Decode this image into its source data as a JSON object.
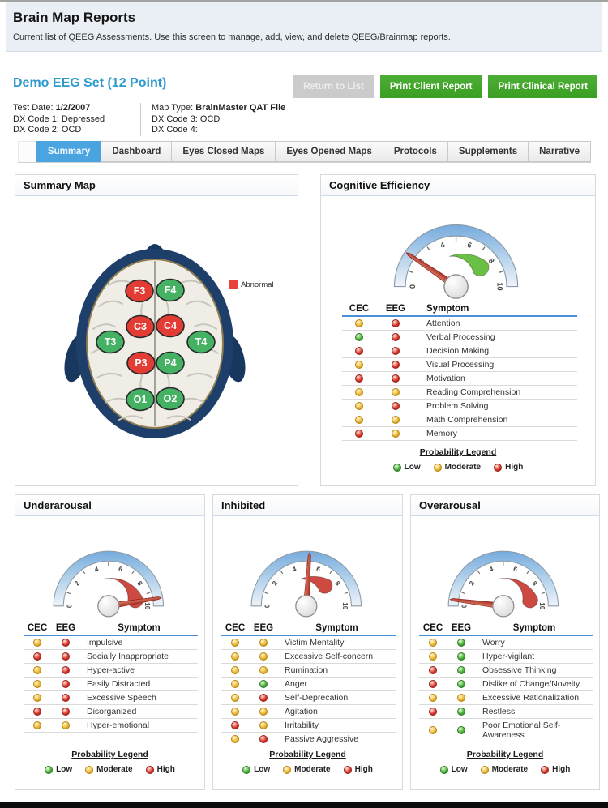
{
  "header": {
    "title": "Brain Map Reports",
    "subtitle": "Current list of QEEG Assessments. Use this screen to manage, add, view, and delete QEEG/Brainmap reports."
  },
  "report": {
    "name": "Demo EEG Set (12 Point)",
    "actions": [
      {
        "label": "Return to List",
        "style": "disabled"
      },
      {
        "label": "Print Client Report",
        "style": "green"
      },
      {
        "label": "Print Clinical Report",
        "style": "green"
      }
    ],
    "meta_left": [
      {
        "label": "Test Date:",
        "value": "1/2/2007",
        "bold_value": true
      },
      {
        "label": "DX Code 1:",
        "value": "Depressed"
      },
      {
        "label": "DX Code 2:",
        "value": "OCD"
      }
    ],
    "meta_right": [
      {
        "label": "Map Type:",
        "value": "BrainMaster QAT File",
        "bold_value": true
      },
      {
        "label": "DX Code 3:",
        "value": "OCD"
      },
      {
        "label": "DX Code 4:",
        "value": ""
      }
    ]
  },
  "tabs": [
    {
      "label": "Summary",
      "active": true
    },
    {
      "label": "Dashboard"
    },
    {
      "label": "Eyes Closed Maps"
    },
    {
      "label": "Eyes Opened Maps"
    },
    {
      "label": "Protocols"
    },
    {
      "label": "Supplements"
    },
    {
      "label": "Narrative"
    }
  ],
  "summary_map": {
    "title": "Summary Map",
    "legend_label": "Abnormal",
    "colors": {
      "abnormal": "#e23c35",
      "normal": "#44b163"
    },
    "electrodes": [
      {
        "id": "F3",
        "status": "abnormal"
      },
      {
        "id": "F4",
        "status": "normal"
      },
      {
        "id": "C3",
        "status": "abnormal"
      },
      {
        "id": "C4",
        "status": "abnormal"
      },
      {
        "id": "T3",
        "status": "normal"
      },
      {
        "id": "T4",
        "status": "normal"
      },
      {
        "id": "P3",
        "status": "abnormal"
      },
      {
        "id": "P4",
        "status": "normal"
      },
      {
        "id": "O1",
        "status": "normal"
      },
      {
        "id": "O2",
        "status": "normal"
      }
    ]
  },
  "table_columns": [
    "CEC",
    "EEG",
    "Symptom"
  ],
  "gauges_scale": {
    "min": 0,
    "max": 10,
    "ticks": [
      0,
      2,
      4,
      6,
      8,
      10
    ]
  },
  "probability_legend": {
    "title": "Probability Legend",
    "items": [
      {
        "label": "Low",
        "level": "low"
      },
      {
        "label": "Moderate",
        "level": "moderate"
      },
      {
        "label": "High",
        "level": "high"
      }
    ]
  },
  "levels": {
    "low": "#44ad3f",
    "moderate": "#eebc3e",
    "high": "#d93a33"
  },
  "panels": [
    {
      "title": "Cognitive Efficiency",
      "gauge": {
        "value": 1.9,
        "band_from": 4.3,
        "band_to": 7.9,
        "band_color": "#6abf45"
      },
      "rows": [
        {
          "symptom": "Attention",
          "cec": "moderate",
          "eeg": "high"
        },
        {
          "symptom": "Verbal Processing",
          "cec": "low",
          "eeg": "high"
        },
        {
          "symptom": "Decision Making",
          "cec": "high",
          "eeg": "high"
        },
        {
          "symptom": "Visual Processing",
          "cec": "moderate",
          "eeg": "high"
        },
        {
          "symptom": "Motivation",
          "cec": "high",
          "eeg": "high"
        },
        {
          "symptom": "Reading Comprehension",
          "cec": "moderate",
          "eeg": "moderate"
        },
        {
          "symptom": "Problem Solving",
          "cec": "moderate",
          "eeg": "high"
        },
        {
          "symptom": "Math Comprehension",
          "cec": "moderate",
          "eeg": "moderate"
        },
        {
          "symptom": "Memory",
          "cec": "high",
          "eeg": "moderate"
        }
      ]
    },
    {
      "title": "Underarousal",
      "gauge": {
        "value": 9.5,
        "band_from": 4.3,
        "band_to": 9.3,
        "band_color": "#cc4a42"
      },
      "rows": [
        {
          "symptom": "Impulsive",
          "cec": "moderate",
          "eeg": "high"
        },
        {
          "symptom": "Socially Inappropriate",
          "cec": "high",
          "eeg": "high"
        },
        {
          "symptom": "Hyper-active",
          "cec": "moderate",
          "eeg": "high"
        },
        {
          "symptom": "Easily Distracted",
          "cec": "moderate",
          "eeg": "high"
        },
        {
          "symptom": "Excessive Speech",
          "cec": "moderate",
          "eeg": "high"
        },
        {
          "symptom": "Disorganized",
          "cec": "high",
          "eeg": "high"
        },
        {
          "symptom": "Hyper-emotional",
          "cec": "moderate",
          "eeg": "moderate"
        }
      ]
    },
    {
      "title": "Inhibited",
      "gauge": {
        "value": 5.2,
        "band_from": 4.3,
        "band_to": 7.4,
        "band_color": "#cc4a42"
      },
      "rows": [
        {
          "symptom": "Victim Mentality",
          "cec": "moderate",
          "eeg": "moderate"
        },
        {
          "symptom": "Excessive Self-concern",
          "cec": "moderate",
          "eeg": "moderate"
        },
        {
          "symptom": "Rumination",
          "cec": "moderate",
          "eeg": "moderate"
        },
        {
          "symptom": "Anger",
          "cec": "moderate",
          "eeg": "low"
        },
        {
          "symptom": "Self-Deprecation",
          "cec": "moderate",
          "eeg": "high"
        },
        {
          "symptom": "Agitation",
          "cec": "moderate",
          "eeg": "moderate"
        },
        {
          "symptom": "Irritability",
          "cec": "high",
          "eeg": "moderate"
        },
        {
          "symptom": "Passive Aggressive",
          "cec": "moderate",
          "eeg": "high"
        }
      ]
    },
    {
      "title": "Overarousal",
      "gauge": {
        "value": 0.4,
        "band_from": 4.3,
        "band_to": 9.3,
        "band_color": "#cc4a42"
      },
      "rows": [
        {
          "symptom": "Worry",
          "cec": "moderate",
          "eeg": "low"
        },
        {
          "symptom": "Hyper-vigilant",
          "cec": "moderate",
          "eeg": "low"
        },
        {
          "symptom": "Obsessive Thinking",
          "cec": "high",
          "eeg": "low"
        },
        {
          "symptom": "Dislike of Change/Novelty",
          "cec": "high",
          "eeg": "low"
        },
        {
          "symptom": "Excessive Rationalization",
          "cec": "moderate",
          "eeg": "moderate"
        },
        {
          "symptom": "Restless",
          "cec": "high",
          "eeg": "low"
        },
        {
          "symptom": "Poor Emotional Self-Awareness",
          "cec": "moderate",
          "eeg": "low"
        }
      ]
    }
  ]
}
